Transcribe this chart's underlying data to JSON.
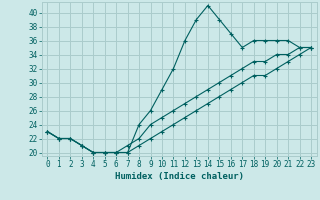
{
  "title": "",
  "xlabel": "Humidex (Indice chaleur)",
  "ylabel": "",
  "background_color": "#cce8e8",
  "grid_color": "#aacccc",
  "line_color": "#006060",
  "xlim": [
    -0.5,
    23.5
  ],
  "ylim": [
    19.5,
    41.5
  ],
  "yticks": [
    20,
    22,
    24,
    26,
    28,
    30,
    32,
    34,
    36,
    38,
    40
  ],
  "xticks": [
    0,
    1,
    2,
    3,
    4,
    5,
    6,
    7,
    8,
    9,
    10,
    11,
    12,
    13,
    14,
    15,
    16,
    17,
    18,
    19,
    20,
    21,
    22,
    23
  ],
  "series": [
    [
      23,
      22,
      22,
      21,
      20,
      20,
      20,
      20,
      24,
      26,
      29,
      32,
      36,
      39,
      41,
      39,
      37,
      35,
      36,
      36,
      36,
      36,
      35,
      35
    ],
    [
      23,
      22,
      22,
      21,
      20,
      20,
      20,
      21,
      22,
      24,
      25,
      26,
      27,
      28,
      29,
      30,
      31,
      32,
      33,
      33,
      34,
      34,
      35,
      35
    ],
    [
      23,
      22,
      22,
      21,
      20,
      20,
      20,
      20,
      21,
      22,
      23,
      24,
      25,
      26,
      27,
      28,
      29,
      30,
      31,
      31,
      32,
      33,
      34,
      35
    ]
  ]
}
